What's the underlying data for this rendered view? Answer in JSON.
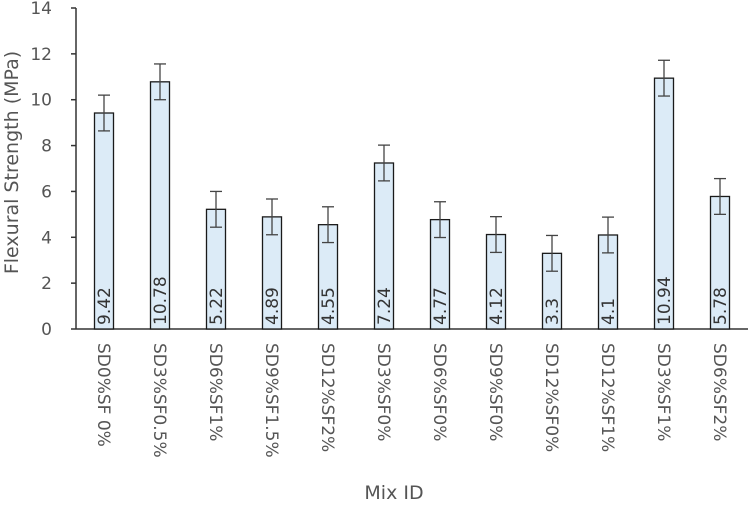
{
  "chart_data": {
    "type": "bar",
    "title": "",
    "xlabel": "Mix ID",
    "ylabel": "Flexural Strength (MPa)",
    "ylim": [
      0,
      14
    ],
    "yticks": [
      0,
      2,
      4,
      6,
      8,
      10,
      12,
      14
    ],
    "grid": false,
    "categories": [
      "SD0%SF 0%",
      "SD3%SF0.5%",
      "SD6%SF1%",
      "SD9%SF1.5%",
      "SD12%SF2%",
      "SD3%SF0%",
      "SD6%SF0%",
      "SD9%SF0%",
      "SD12%SF0%",
      "SD12%SF1%",
      "SD3%SF1%",
      "SD6%SF2%"
    ],
    "values": [
      9.42,
      10.78,
      5.22,
      4.89,
      4.55,
      7.24,
      4.77,
      4.12,
      3.3,
      4.1,
      10.94,
      5.78
    ],
    "data_labels": [
      "9.42",
      "10.78",
      "5.22",
      "4.89",
      "4.55",
      "7.24",
      "4.77",
      "4.12",
      "3.3",
      "4.1",
      "10.94",
      "5.78"
    ],
    "error": [
      0.78,
      0.78,
      0.78,
      0.78,
      0.78,
      0.78,
      0.78,
      0.78,
      0.78,
      0.78,
      0.78,
      0.78
    ],
    "bar_color": "#dcebf7",
    "bar_edge_color": "#1a1a1a"
  }
}
